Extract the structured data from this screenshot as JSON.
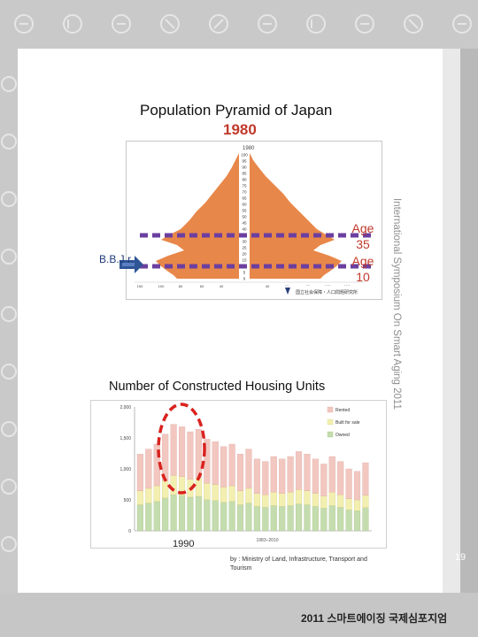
{
  "pyramid": {
    "title": "Population Pyramid of Japan",
    "year": "1980",
    "age_axis_ticks": [
      "0",
      "5",
      "10",
      "15",
      "20",
      "25",
      "30",
      "35",
      "40",
      "45",
      "50",
      "55",
      "60",
      "65",
      "70",
      "75",
      "80",
      "85",
      "90",
      "95",
      "100"
    ],
    "markers": {
      "bbj_label": "B.B.J r.",
      "age35_label": "Age 35",
      "age10_label": "Age 10"
    }
  },
  "housing": {
    "title": "Number of Constructed Housing Units",
    "chart_data": {
      "type": "bar",
      "legend": [
        "Rented",
        "Built for sale",
        "Owned"
      ],
      "ylim": [
        0,
        2000
      ],
      "yticks": [
        "0",
        "500",
        "1,000",
        "1,500",
        "2,000"
      ],
      "x_range": "1983–2010",
      "highlight_label": "1990"
    },
    "source_text": "by : Ministry of Land, Infrastructure, Transport and Tourism"
  },
  "side_title": "International Symposium On Smart Aging 2011",
  "page_number": "19",
  "footer_text": "2011 스마트에이징 국제심포지엄",
  "colors": {
    "accent_red": "#c0392b",
    "marker_purple": "#6b3fa0",
    "arrow_blue": "#2f5597",
    "pyramid_orange": "#e8874a"
  }
}
